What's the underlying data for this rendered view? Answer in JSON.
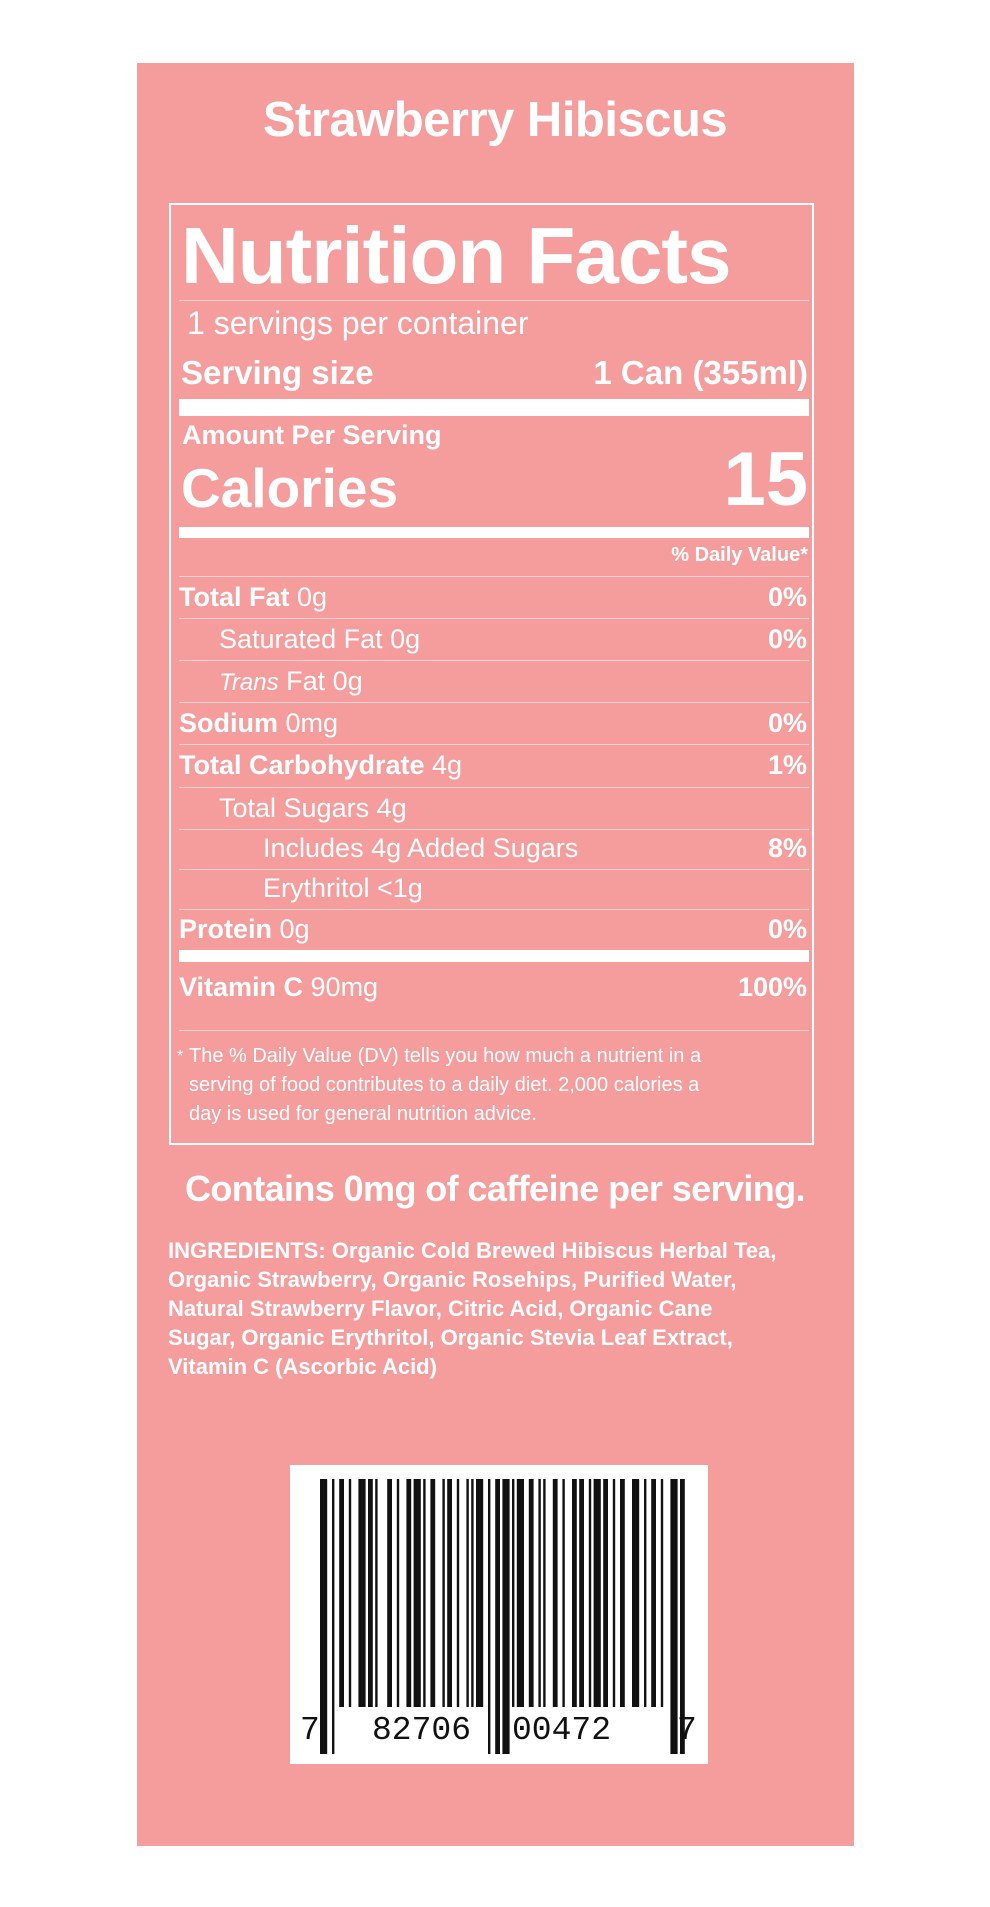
{
  "product_title": "Strawberry Hibiscus",
  "nutrition": {
    "heading": "Nutrition Facts",
    "servings_per_container": "1 servings per container",
    "serving_size_label": "Serving size",
    "serving_size_value": "1 Can (355ml)",
    "amount_per_serving": "Amount Per Serving",
    "calories_label": "Calories",
    "calories_value": "15",
    "daily_value_header": "% Daily Value*",
    "rows": [
      {
        "bold": "Total Fat",
        "plain": " 0g",
        "pct": "0%"
      },
      {
        "plain": "Saturated Fat 0g",
        "pct": "0%"
      },
      {
        "italic": "Trans",
        "plain": " Fat 0g",
        "pct": ""
      },
      {
        "bold": "Sodium",
        "plain": " 0mg",
        "pct": "0%"
      },
      {
        "bold": "Total Carbohydrate",
        "plain": " 4g",
        "pct": "1%"
      },
      {
        "plain": "Total Sugars 4g",
        "pct": ""
      },
      {
        "plain": "Includes 4g Added Sugars",
        "pct": "8%"
      },
      {
        "plain": "Erythritol <1g",
        "pct": ""
      },
      {
        "bold": "Protein",
        "plain": " 0g",
        "pct": "0%"
      },
      {
        "bold": "Vitamin C",
        "plain": " 90mg",
        "pct": "100%"
      }
    ],
    "footnote_star": "*",
    "footnote_lines": [
      "The % Daily Value (DV) tells you how much a nutrient in a",
      "serving of food contributes to a daily diet. 2,000 calories a",
      "day is used for general nutrition advice."
    ]
  },
  "caffeine_statement": "Contains 0mg of caffeine per serving.",
  "ingredients_lines": [
    "INGREDIENTS: Organic Cold Brewed Hibiscus Herbal  Tea,",
    "Organic Strawberry, Organic Rosehips, Purified Water,",
    "Natural Strawberry Flavor, Citric Acid, Organic Cane",
    "Sugar, Organic Erythritol, Organic Stevia Leaf Extract,",
    "Vitamin C (Ascorbic Acid)"
  ],
  "barcode": {
    "digits_first": "7",
    "digits_left": "82706",
    "digits_right": "00472",
    "digits_last": "7"
  },
  "colors": {
    "panel_background": "#f59c9c",
    "text": "#ffffff",
    "barcode_bars": "#111111"
  }
}
